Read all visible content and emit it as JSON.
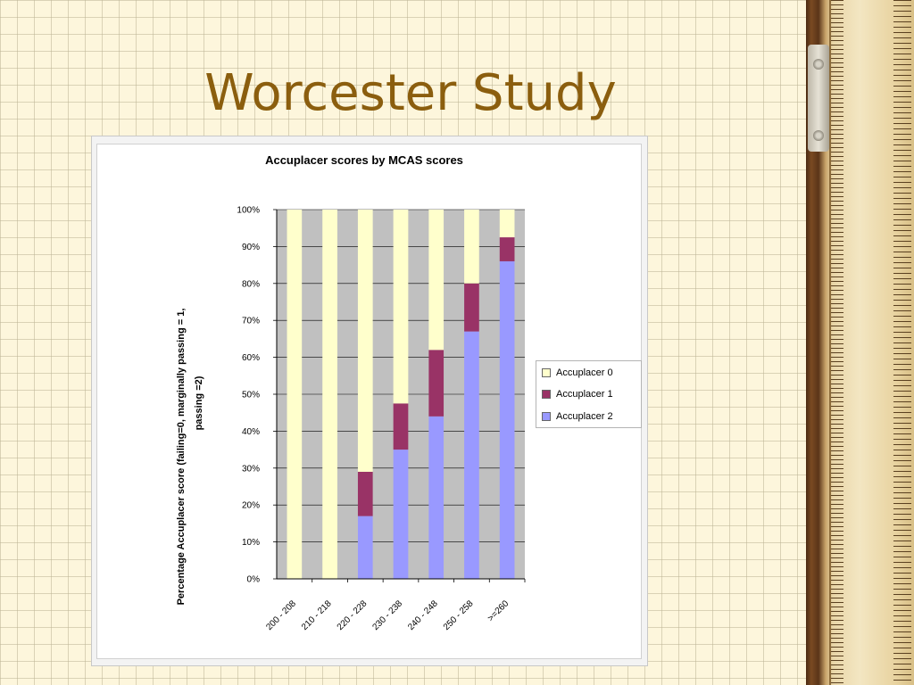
{
  "slide": {
    "title": "Worcester Study"
  },
  "chart_data": {
    "type": "bar",
    "stacked": true,
    "title": "Accuplacer scores by MCAS scores",
    "xlabel": "",
    "ylabel": "Percentage Accuplacer score (failing=0, marginally passing = 1, passing =2)",
    "ylabel_lines": [
      "Percentage Accuplacer score (failing=0, marginally passing = 1,",
      "passing =2)"
    ],
    "categories": [
      "200 - 208",
      "210 - 218",
      "220 - 228",
      "230 - 238",
      "240 - 248",
      "250 - 258",
      ">=260"
    ],
    "series": [
      {
        "name": "Accuplacer 2",
        "color": "#9999ff",
        "values": [
          0,
          0,
          17,
          35,
          44,
          67,
          86
        ]
      },
      {
        "name": "Accuplacer 1",
        "color": "#993366",
        "values": [
          0,
          0,
          12,
          12.5,
          18,
          13,
          6.5
        ]
      },
      {
        "name": "Accuplacer 0",
        "color": "#ffffcc",
        "values": [
          100,
          100,
          71,
          52.5,
          38,
          20,
          7.5
        ]
      }
    ],
    "ylim": [
      0,
      100
    ],
    "yticks": [
      "0%",
      "10%",
      "20%",
      "30%",
      "40%",
      "50%",
      "60%",
      "70%",
      "80%",
      "90%",
      "100%"
    ],
    "grid": true,
    "plot_background": "#c0c0c0",
    "legend_position": "right",
    "legend": [
      "Accuplacer 0",
      "Accuplacer 1",
      "Accuplacer 2"
    ]
  },
  "legend_colors": {
    "Accuplacer 0": "#ffffcc",
    "Accuplacer 1": "#993366",
    "Accuplacer 2": "#9999ff"
  }
}
